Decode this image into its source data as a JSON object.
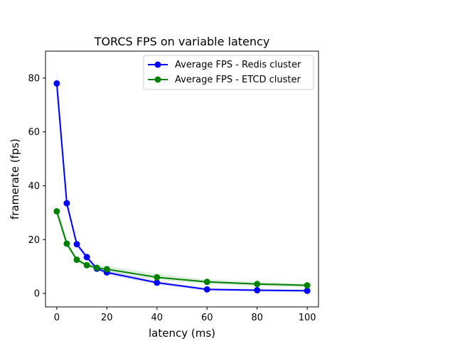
{
  "chart_data": {
    "type": "line",
    "title": "TORCS FPS on variable latency",
    "xlabel": "latency (ms)",
    "ylabel": "framerate (fps)",
    "xlim": [
      -4.5,
      104.5
    ],
    "ylim": [
      -5,
      90
    ],
    "x_ticks": [
      0,
      20,
      40,
      60,
      80,
      100
    ],
    "y_ticks": [
      0,
      20,
      40,
      60,
      80
    ],
    "x_tick_labels": [
      "0",
      "20",
      "40",
      "60",
      "80",
      "100"
    ],
    "y_tick_labels": [
      "0",
      "20",
      "40",
      "60",
      "80"
    ],
    "legend_position": "top-right",
    "grid": false,
    "series": [
      {
        "name": "Average FPS - Redis cluster",
        "color": "#0000ff",
        "band_color": "#8080ff",
        "x": [
          0,
          4,
          8,
          12,
          16,
          20,
          40,
          60,
          80,
          100
        ],
        "y": [
          78,
          33.5,
          18.3,
          13.5,
          9.2,
          7.8,
          4,
          1.5,
          1.2,
          1
        ],
        "lower": [
          73,
          31.5,
          17.3,
          12.5,
          8.4,
          7.0,
          3.3,
          1.0,
          0.7,
          0.5
        ],
        "upper": [
          83,
          35.5,
          19.3,
          14.5,
          10.0,
          8.6,
          4.7,
          2.0,
          1.7,
          1.5
        ]
      },
      {
        "name": "Average FPS - ETCD cluster",
        "color": "#008000",
        "band_color": "#80c080",
        "x": [
          0,
          4,
          8,
          12,
          16,
          20,
          40,
          60,
          80,
          100
        ],
        "y": [
          30.5,
          18.5,
          12.5,
          10.5,
          9.5,
          9,
          6,
          4.3,
          3.5,
          3
        ],
        "lower": [
          28.5,
          17.3,
          11.7,
          9.7,
          8.8,
          8.2,
          5.0,
          3.5,
          2.8,
          2.3
        ],
        "upper": [
          32.5,
          19.7,
          13.3,
          11.3,
          10.5,
          10.2,
          7.3,
          5.2,
          4.3,
          3.7
        ]
      }
    ]
  }
}
